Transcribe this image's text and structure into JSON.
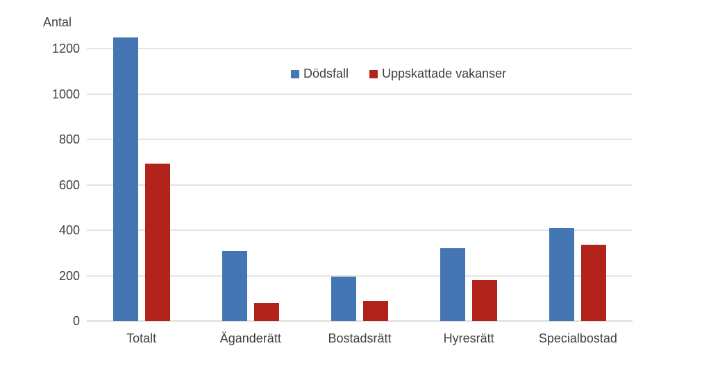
{
  "chart_data": {
    "type": "bar",
    "title": "",
    "ylabel": "Antal",
    "xlabel": "",
    "categories": [
      "Totalt",
      "Äganderätt",
      "Bostadsrätt",
      "Hyresrätt",
      "Specialbostad"
    ],
    "series": [
      {
        "name": "Dödsfall",
        "color": "#4476B3",
        "values": [
          1250,
          310,
          195,
          320,
          410
        ]
      },
      {
        "name": "Uppskattade vakanser",
        "color": "#B2231B",
        "values": [
          695,
          80,
          90,
          180,
          335
        ]
      }
    ],
    "ylim": [
      0,
      1200
    ],
    "yticks": [
      0,
      200,
      400,
      600,
      800,
      1000,
      1200
    ],
    "grid": true,
    "legend_position": "top-center"
  },
  "colors": {
    "background": "#ffffff",
    "gridline": "#e4e4e4",
    "axis_text": "#404040",
    "series_blue": "#4476B3",
    "series_red": "#B2231B"
  }
}
